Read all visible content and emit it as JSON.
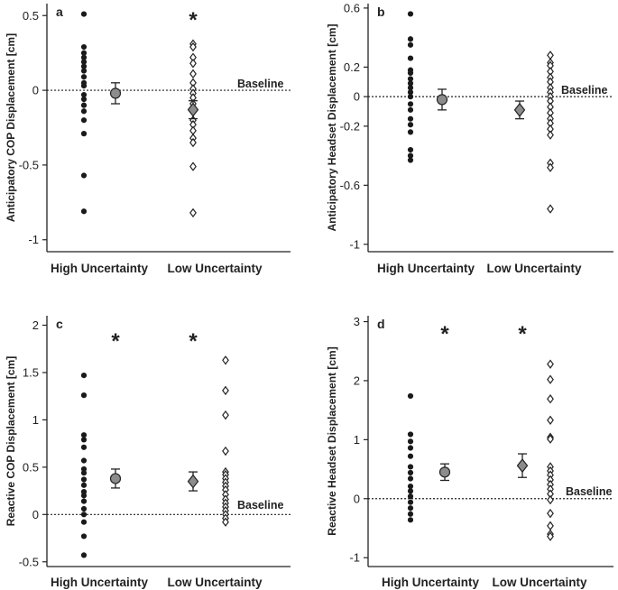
{
  "chart_data": [
    {
      "type": "scatter",
      "panel_label": "a",
      "ylabel": "Anticipatory COP Displacement [cm]",
      "ylim": [
        -1.08,
        0.58
      ],
      "yticks": [
        {
          "v": 0.5,
          "label": "0.5"
        },
        {
          "v": 0,
          "label": "0"
        },
        {
          "v": -0.5,
          "label": "-0.5"
        },
        {
          "v": -1,
          "label": "-1"
        }
      ],
      "categories": [
        "High Uncertainty",
        "Low Uncertainty"
      ],
      "baseline": {
        "value": 0,
        "label": "Baseline"
      },
      "stars": [
        {
          "category": 1,
          "text": "*"
        }
      ],
      "series": [
        {
          "name": "High Uncertainty individual",
          "marker": "dot",
          "values": [
            0.51,
            0.29,
            0.25,
            0.22,
            0.19,
            0.16,
            0.13,
            0.09,
            0.05,
            0.03,
            -0.03,
            -0.06,
            -0.1,
            -0.14,
            -0.2,
            -0.29,
            -0.57,
            -0.81
          ]
        },
        {
          "name": "Low Uncertainty individual",
          "marker": "open-diamond",
          "values": [
            0.31,
            0.29,
            0.22,
            0.18,
            0.11,
            0.05,
            0.01,
            -0.02,
            -0.05,
            -0.09,
            -0.13,
            -0.2,
            -0.23,
            -0.27,
            -0.32,
            -0.35,
            -0.51,
            -0.82
          ]
        }
      ],
      "means": [
        {
          "category": 0,
          "marker": "circle",
          "mean": -0.02,
          "err": 0.07
        },
        {
          "category": 1,
          "marker": "diamond",
          "mean": -0.13,
          "err": 0.06
        }
      ]
    },
    {
      "type": "scatter",
      "panel_label": "b",
      "ylabel": "Anticipatory Headset Displacement [cm]",
      "ylim": [
        -1.05,
        0.63
      ],
      "yticks": [
        {
          "v": 0.6,
          "label": "0.6"
        },
        {
          "v": 0.2,
          "label": "0.2"
        },
        {
          "v": 0,
          "label": "0"
        },
        {
          "v": -0.2,
          "label": "-0.2"
        },
        {
          "v": -0.6,
          "label": "-0.6"
        },
        {
          "v": -1,
          "label": "-1"
        }
      ],
      "categories": [
        "High Uncertainty",
        "Low Uncertainty"
      ],
      "baseline": {
        "value": 0,
        "label": "Baseline"
      },
      "stars": [],
      "series": [
        {
          "name": "High Uncertainty individual",
          "marker": "dot",
          "values": [
            0.56,
            0.39,
            0.35,
            0.26,
            0.18,
            0.16,
            0.12,
            0.09,
            0.06,
            0.03,
            0.0,
            -0.05,
            -0.09,
            -0.15,
            -0.19,
            -0.24,
            -0.36,
            -0.4,
            -0.43
          ]
        },
        {
          "name": "Low Uncertainty individual",
          "marker": "open-diamond",
          "values": [
            0.28,
            0.23,
            0.21,
            0.17,
            0.13,
            0.1,
            0.06,
            0.03,
            0.0,
            -0.03,
            -0.07,
            -0.11,
            -0.15,
            -0.18,
            -0.22,
            -0.26,
            -0.45,
            -0.48,
            -0.76
          ]
        }
      ],
      "means": [
        {
          "category": 0,
          "marker": "circle",
          "mean": -0.02,
          "err": 0.07
        },
        {
          "category": 1,
          "marker": "diamond",
          "mean": -0.09,
          "err": 0.06
        }
      ]
    },
    {
      "type": "scatter",
      "panel_label": "c",
      "ylabel": "Reactive COP Displacement [cm]",
      "ylim": [
        -0.55,
        2.1
      ],
      "yticks": [
        {
          "v": 2,
          "label": "2"
        },
        {
          "v": 1.5,
          "label": "1.5"
        },
        {
          "v": 1,
          "label": "1"
        },
        {
          "v": 0.5,
          "label": "0.5"
        },
        {
          "v": 0,
          "label": "0"
        },
        {
          "v": -0.5,
          "label": "-0.5"
        }
      ],
      "categories": [
        "High Uncertainty",
        "Low Uncertainty"
      ],
      "baseline": {
        "value": 0,
        "label": "Baseline"
      },
      "stars": [
        {
          "category": 0,
          "text": "*"
        },
        {
          "category": 1,
          "text": "*"
        }
      ],
      "series": [
        {
          "name": "High Uncertainty individual",
          "marker": "dot",
          "values": [
            1.47,
            1.26,
            0.84,
            0.79,
            0.71,
            0.57,
            0.48,
            0.44,
            0.37,
            0.31,
            0.24,
            0.2,
            0.14,
            0.06,
            0.0,
            -0.08,
            -0.23,
            -0.43
          ]
        },
        {
          "name": "Low Uncertainty individual",
          "marker": "open-diamond",
          "values": [
            1.63,
            1.31,
            1.05,
            0.67,
            0.45,
            0.42,
            0.38,
            0.34,
            0.3,
            0.26,
            0.21,
            0.16,
            0.12,
            0.08,
            0.04,
            0.0,
            -0.04,
            -0.08
          ]
        }
      ],
      "means": [
        {
          "category": 0,
          "marker": "circle",
          "mean": 0.38,
          "err": 0.1
        },
        {
          "category": 1,
          "marker": "diamond",
          "mean": 0.35,
          "err": 0.1
        }
      ]
    },
    {
      "type": "scatter",
      "panel_label": "d",
      "ylabel": "Reactive Headset Displacement [cm]",
      "ylim": [
        -1.15,
        3.1
      ],
      "yticks": [
        {
          "v": 3,
          "label": "3"
        },
        {
          "v": 2,
          "label": "2"
        },
        {
          "v": 1,
          "label": "1"
        },
        {
          "v": 0,
          "label": "0"
        },
        {
          "v": -1,
          "label": "-1"
        }
      ],
      "categories": [
        "High Uncertainty",
        "Low Uncertainty"
      ],
      "baseline": {
        "value": 0,
        "label": "Baseline"
      },
      "stars": [
        {
          "category": 0,
          "text": "*"
        },
        {
          "category": 1,
          "text": "*"
        }
      ],
      "series": [
        {
          "name": "High Uncertainty individual",
          "marker": "dot",
          "values": [
            1.74,
            1.09,
            0.97,
            0.86,
            0.72,
            0.54,
            0.44,
            0.34,
            0.21,
            0.13,
            0.04,
            -0.06,
            -0.16,
            -0.26,
            -0.36
          ]
        },
        {
          "name": "Low Uncertainty individual",
          "marker": "open-diamond",
          "values": [
            2.28,
            2.02,
            1.69,
            1.33,
            1.04,
            1.01,
            0.54,
            0.47,
            0.4,
            0.32,
            0.24,
            0.16,
            0.08,
            -0.02,
            -0.25,
            -0.46,
            -0.6,
            -0.64
          ]
        }
      ],
      "means": [
        {
          "category": 0,
          "marker": "circle",
          "mean": 0.45,
          "err": 0.14
        },
        {
          "category": 1,
          "marker": "diamond",
          "mean": 0.56,
          "err": 0.2
        }
      ]
    }
  ]
}
